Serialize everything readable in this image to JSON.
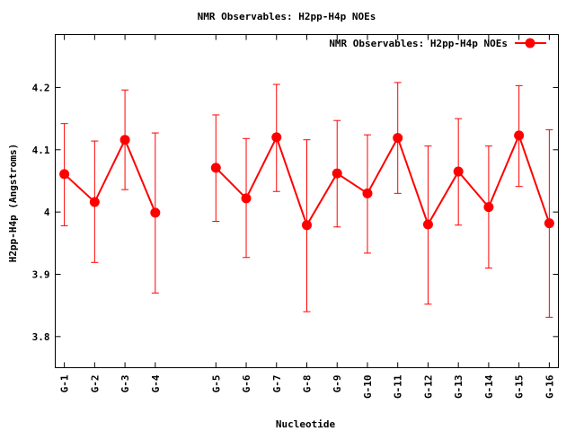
{
  "chart_data": {
    "type": "line",
    "title": "NMR Observables: H2pp-H4p NOEs",
    "xlabel": "Nucleotide",
    "ylabel": "H2pp-H4p (Angstroms)",
    "ylim": [
      3.75,
      4.285
    ],
    "yticks": [
      3.8,
      3.9,
      4,
      4.1,
      4.2
    ],
    "ytick_labels": [
      "3.8",
      "3.9",
      "4",
      "4.1",
      "4.2"
    ],
    "xlim": [
      0.7,
      17.3
    ],
    "grid": false,
    "legend_position": "top-right",
    "categories": [
      "G-1",
      "G-2",
      "G-3",
      "G-4",
      "G-5",
      "G-6",
      "G-7",
      "G-8",
      "G-9",
      "G-10",
      "G-11",
      "G-12",
      "G-13",
      "G-14",
      "G-15",
      "G-16"
    ],
    "x": [
      1,
      2,
      3,
      4,
      6,
      7,
      8,
      9,
      10,
      11,
      12,
      13,
      14,
      15,
      16,
      17
    ],
    "color": "#ff0000",
    "series": [
      {
        "name": "NMR Observables: H2pp-H4p NOEs",
        "segments": [
          [
            0,
            1,
            2,
            3
          ],
          [
            4,
            5,
            6,
            7,
            8,
            9,
            10,
            11,
            12,
            13,
            14,
            15
          ]
        ],
        "values": [
          4.061,
          4.016,
          4.116,
          3.999,
          4.071,
          4.022,
          4.12,
          3.979,
          4.062,
          4.03,
          4.119,
          3.98,
          4.065,
          4.008,
          4.123,
          3.982
        ],
        "err_low": [
          3.978,
          3.919,
          4.036,
          3.87,
          3.985,
          3.927,
          4.033,
          3.84,
          3.976,
          3.934,
          4.03,
          3.852,
          3.979,
          3.91,
          4.041,
          3.831
        ],
        "err_high": [
          4.142,
          4.114,
          4.196,
          4.127,
          4.156,
          4.118,
          4.205,
          4.116,
          4.147,
          4.124,
          4.208,
          4.106,
          4.15,
          4.106,
          4.203,
          4.132
        ]
      }
    ]
  }
}
